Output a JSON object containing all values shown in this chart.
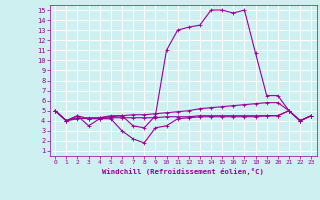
{
  "xlabel": "Windchill (Refroidissement éolien,°C)",
  "bg_color": "#cff0f0",
  "grid_color": "#ffffff",
  "line_color": "#990099",
  "xlim": [
    -0.5,
    23.5
  ],
  "ylim": [
    0.5,
    15.5
  ],
  "xticks": [
    0,
    1,
    2,
    3,
    4,
    5,
    6,
    7,
    8,
    9,
    10,
    11,
    12,
    13,
    14,
    15,
    16,
    17,
    18,
    19,
    20,
    21,
    22,
    23
  ],
  "yticks": [
    1,
    2,
    3,
    4,
    5,
    6,
    7,
    8,
    9,
    10,
    11,
    12,
    13,
    14,
    15
  ],
  "line1_x": [
    0,
    1,
    2,
    3,
    4,
    5,
    6,
    7,
    8,
    9,
    10,
    11,
    12,
    13,
    14,
    15,
    16,
    17,
    18,
    19,
    20,
    21,
    22,
    23
  ],
  "line1_y": [
    5.0,
    4.0,
    4.5,
    4.2,
    4.3,
    4.5,
    4.5,
    3.5,
    3.3,
    4.5,
    11.0,
    13.0,
    13.3,
    13.5,
    15.0,
    15.0,
    14.7,
    15.0,
    10.7,
    6.5,
    6.5,
    5.0,
    4.0,
    4.5
  ],
  "line2_x": [
    0,
    1,
    2,
    3,
    4,
    5,
    6,
    7,
    8,
    9,
    10,
    11,
    12,
    13,
    14,
    15,
    16,
    17,
    18,
    19,
    20,
    21,
    22,
    23
  ],
  "line2_y": [
    5.0,
    4.0,
    4.2,
    4.3,
    4.3,
    4.4,
    4.5,
    4.6,
    4.6,
    4.7,
    4.8,
    4.9,
    5.0,
    5.2,
    5.3,
    5.4,
    5.5,
    5.6,
    5.7,
    5.8,
    5.8,
    5.0,
    4.0,
    4.5
  ],
  "line3_x": [
    0,
    1,
    2,
    3,
    4,
    5,
    6,
    7,
    8,
    9,
    10,
    11,
    12,
    13,
    14,
    15,
    16,
    17,
    18,
    19,
    20,
    21,
    22,
    23
  ],
  "line3_y": [
    5.0,
    4.0,
    4.3,
    4.2,
    4.2,
    4.3,
    4.3,
    4.3,
    4.3,
    4.3,
    4.4,
    4.4,
    4.4,
    4.5,
    4.5,
    4.5,
    4.5,
    4.5,
    4.5,
    4.5,
    4.5,
    5.0,
    4.0,
    4.5
  ],
  "line4_x": [
    0,
    1,
    2,
    3,
    4,
    5,
    6,
    7,
    8,
    9,
    10,
    11,
    12,
    13,
    14,
    15,
    16,
    17,
    18,
    19,
    20,
    21,
    22,
    23
  ],
  "line4_y": [
    5.0,
    4.0,
    4.5,
    3.5,
    4.2,
    4.2,
    3.0,
    2.2,
    1.8,
    3.3,
    3.5,
    4.2,
    4.3,
    4.4,
    4.4,
    4.4,
    4.4,
    4.4,
    4.4,
    4.5,
    4.5,
    5.0,
    4.0,
    4.5
  ]
}
